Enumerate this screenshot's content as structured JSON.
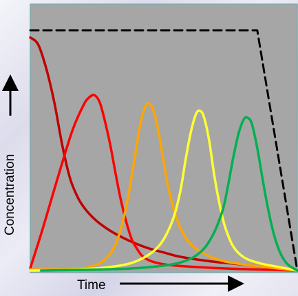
{
  "chart_data": {
    "type": "line",
    "xlabel": "Time",
    "ylabel": "Concentration",
    "xlim": [
      0,
      100
    ],
    "ylim": [
      0,
      100
    ],
    "grid": false,
    "legend": "none",
    "plot_background": "#a6a6a6",
    "plot_border": "#7ea8a8",
    "series": [
      {
        "color": "#000000",
        "dash": true,
        "x": [
          0,
          85,
          100
        ],
        "y": [
          100,
          100,
          0
        ]
      },
      {
        "color": "#c00000",
        "x": [
          0,
          3,
          6,
          9,
          12,
          15,
          18,
          21,
          25,
          30,
          35,
          40,
          45,
          50,
          55,
          60,
          65,
          70,
          75,
          80,
          85,
          90,
          95,
          100
        ],
        "y": [
          97,
          94,
          84,
          70,
          52,
          38,
          30,
          25,
          20.5,
          16.5,
          13.5,
          11,
          9,
          7.5,
          6,
          5,
          4.2,
          3.5,
          3,
          2.4,
          1.8,
          1.2,
          0.6,
          0
        ]
      },
      {
        "color": "#ff0000",
        "x": [
          0,
          4,
          8,
          12,
          16,
          20,
          22,
          24,
          26,
          28,
          30,
          32,
          34,
          36,
          38,
          40,
          42,
          45,
          50,
          55,
          60,
          70,
          80,
          90,
          100
        ],
        "y": [
          1,
          15,
          30,
          45,
          59,
          69,
          72,
          73,
          70,
          62,
          52,
          40,
          29,
          20,
          13,
          9,
          6,
          4,
          2.6,
          2,
          1.6,
          1,
          0.6,
          0.3,
          0
        ]
      },
      {
        "color": "#ffa500",
        "x": [
          0,
          10,
          20,
          26,
          30,
          33,
          36,
          39,
          41,
          43,
          44.5,
          46,
          48,
          50,
          52,
          55,
          58,
          61,
          66,
          72,
          80,
          90,
          100
        ],
        "y": [
          0.5,
          0.4,
          1,
          3,
          7,
          14,
          27,
          46,
          60,
          68,
          69.5,
          67,
          58,
          45,
          33,
          21,
          14,
          10,
          6.5,
          4,
          2.5,
          1.2,
          0
        ]
      },
      {
        "color": "#ffff33",
        "x": [
          0,
          15,
          30,
          40,
          48,
          53,
          56,
          58,
          60,
          62,
          63.5,
          65,
          67,
          69,
          71,
          73,
          76,
          80,
          86,
          93,
          100
        ],
        "y": [
          0,
          0.3,
          1.5,
          4,
          10,
          20,
          32,
          45,
          57,
          65,
          66.5,
          64,
          54,
          39,
          27,
          18,
          10,
          5.5,
          3,
          1.5,
          0
        ]
      },
      {
        "color": "#00b050",
        "x": [
          4,
          20,
          40,
          55,
          63,
          68,
          72,
          74,
          76,
          78,
          80,
          81.5,
          83,
          85,
          87,
          89,
          91,
          93,
          95,
          97,
          100
        ],
        "y": [
          0,
          0.3,
          1,
          3,
          7,
          14,
          25,
          35,
          47,
          57,
          63,
          63.5,
          61,
          51,
          38,
          26,
          16,
          9,
          4.5,
          2,
          0
        ]
      }
    ]
  }
}
